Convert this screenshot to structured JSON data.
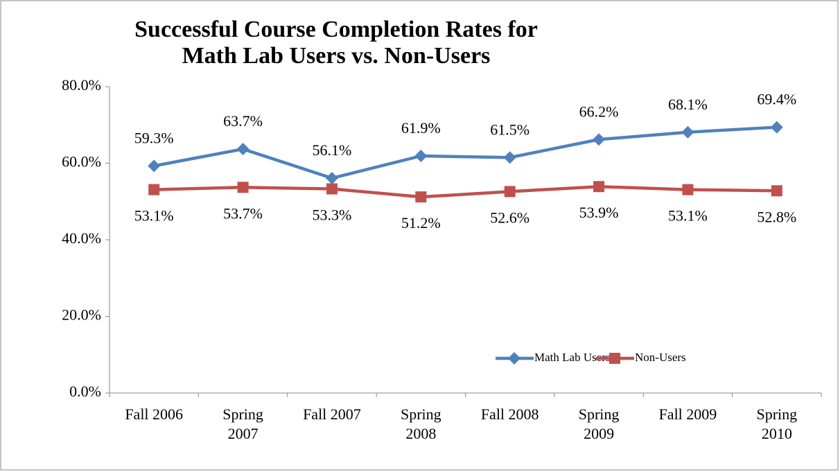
{
  "chart_data": {
    "type": "line",
    "title": "Successful Course Completion Rates for Math Lab Users vs. Non-Users",
    "categories": [
      "Fall 2006",
      "Spring 2007",
      "Fall 2007",
      "Spring 2008",
      "Fall 2008",
      "Spring 2009",
      "Fall 2009",
      "Spring 2010"
    ],
    "series": [
      {
        "name": "Math Lab Users",
        "color": "#4f81bd",
        "marker": "diamond",
        "values": [
          59.3,
          63.7,
          56.1,
          61.9,
          61.5,
          66.2,
          68.1,
          69.4
        ],
        "value_labels": [
          "59.3%",
          "63.7%",
          "56.1%",
          "61.9%",
          "61.5%",
          "66.2%",
          "68.1%",
          "69.4%"
        ]
      },
      {
        "name": "Non-Users",
        "color": "#c0504d",
        "marker": "square",
        "values": [
          53.1,
          53.7,
          53.3,
          51.2,
          52.6,
          53.9,
          53.1,
          52.8
        ],
        "value_labels": [
          "53.1%",
          "53.7%",
          "53.3%",
          "51.2%",
          "52.6%",
          "53.9%",
          "53.1%",
          "52.8%"
        ]
      }
    ],
    "ylim": [
      0,
      80
    ],
    "yticks": [
      {
        "value": 0,
        "label": "0.0%"
      },
      {
        "value": 20,
        "label": "20.0%"
      },
      {
        "value": 40,
        "label": "40.0%"
      },
      {
        "value": 60,
        "label": "60.0%"
      },
      {
        "value": 80,
        "label": "80.0%"
      }
    ],
    "grid": false
  }
}
